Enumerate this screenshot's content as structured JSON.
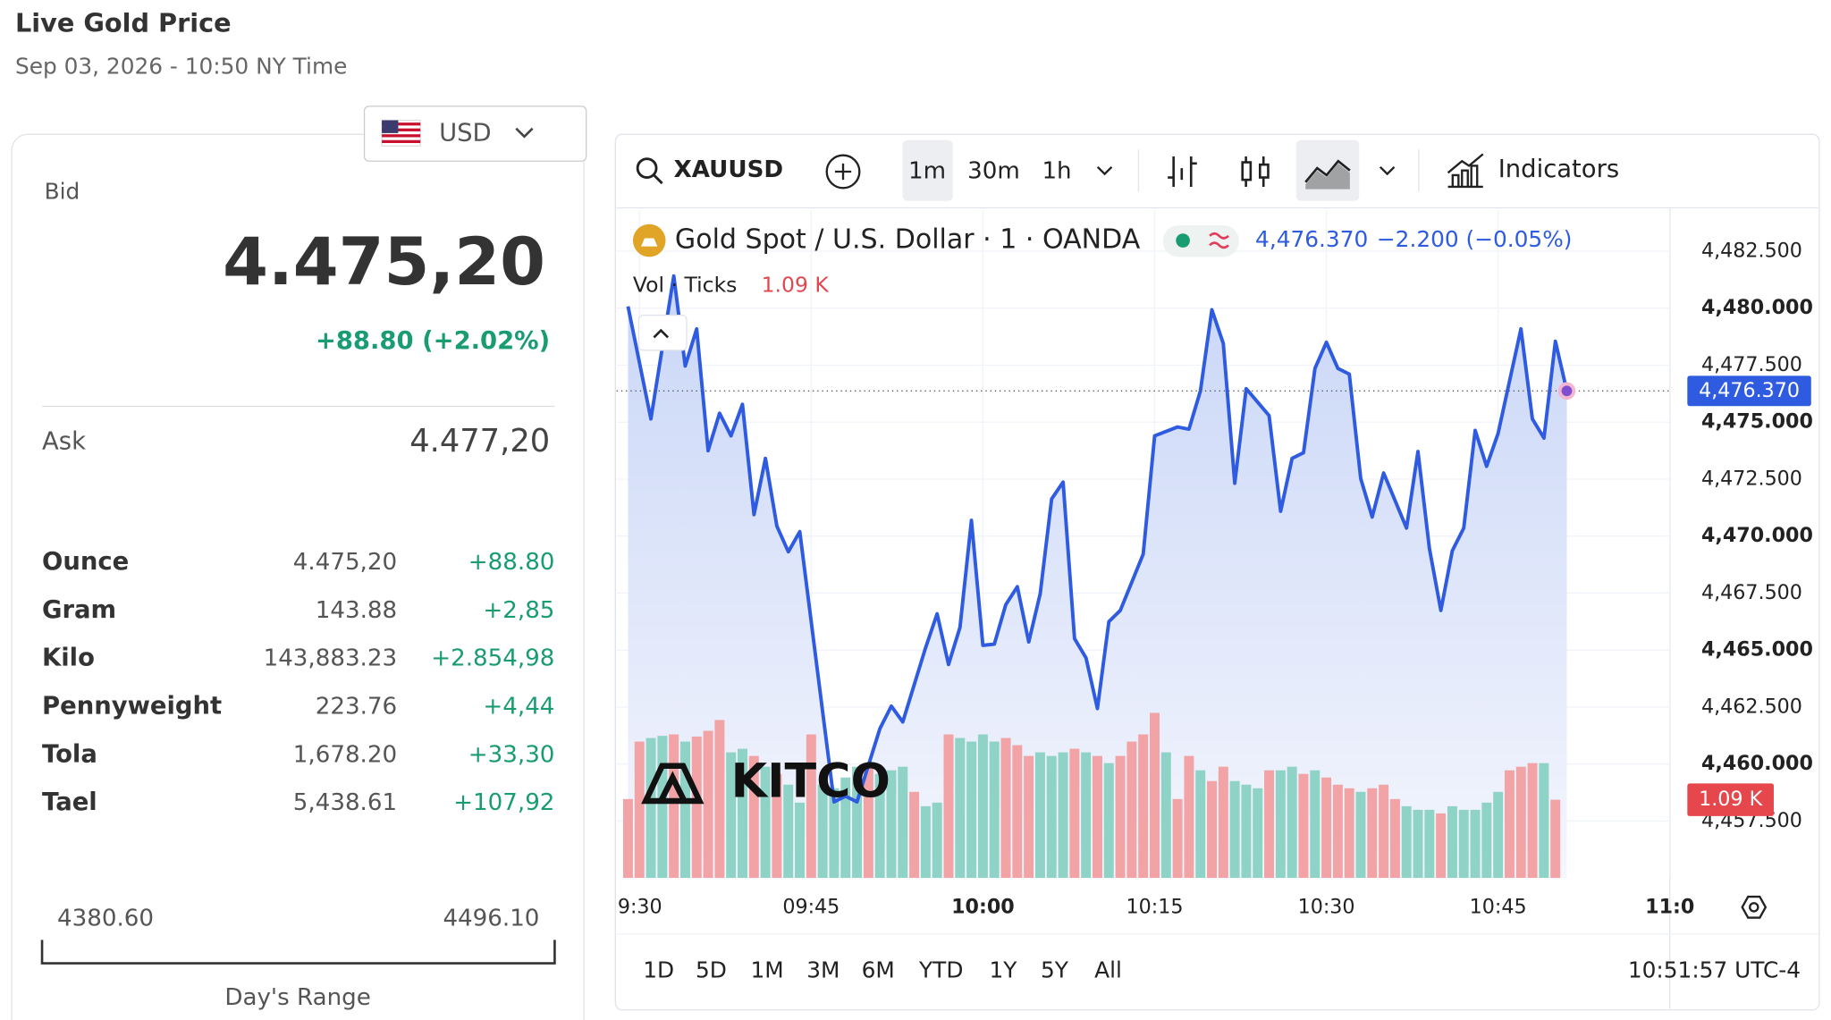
{
  "header": {
    "title": "Live Gold Price",
    "subtitle": "Sep 03, 2026 - 10:50 NY Time"
  },
  "quote": {
    "currency": "USD",
    "bid_label": "Bid",
    "bid": "4.475,20",
    "change": "+88.80 (+2.02%)",
    "ask_label": "Ask",
    "ask": "4.477,20"
  },
  "units": [
    {
      "name": "Ounce",
      "price": "4.475,20",
      "change": "+88.80"
    },
    {
      "name": "Gram",
      "price": "143.88",
      "change": "+2,85"
    },
    {
      "name": "Kilo",
      "price": "143,883.23",
      "change": "+2.854,98"
    },
    {
      "name": "Pennyweight",
      "price": "223.76",
      "change": "+4,44"
    },
    {
      "name": "Tola",
      "price": "1,678.20",
      "change": "+33,30"
    },
    {
      "name": "Tael",
      "price": "5,438.61",
      "change": "+107,92"
    }
  ],
  "day_range": {
    "low": "4380.60",
    "high": "4496.10",
    "label": "Day's Range"
  },
  "toolbar": {
    "symbol": "XAUUSD",
    "intervals": [
      "1m",
      "30m",
      "1h"
    ],
    "indicators": "Indicators"
  },
  "chart_data": {
    "type": "line",
    "title": "Gold Spot / U.S. Dollar · 1 · OANDA",
    "last_label": "4,476.370",
    "last_change": "−2.200 (−0.05%)",
    "color": "#2e5be0",
    "watermark": "KITCO",
    "x": [
      "09:29",
      "09:31",
      "09:33",
      "09:34",
      "09:35",
      "09:36",
      "09:37",
      "09:38",
      "09:39",
      "09:40",
      "09:41",
      "09:42",
      "09:43",
      "09:44",
      "09:46",
      "09:47",
      "09:48",
      "09:49",
      "09:51",
      "09:52",
      "09:53",
      "09:55",
      "09:56",
      "09:57",
      "09:58",
      "09:59",
      "10:00",
      "10:01",
      "10:02",
      "10:03",
      "10:04",
      "10:05",
      "10:06",
      "10:07",
      "10:08",
      "10:09",
      "10:10",
      "10:11",
      "10:12",
      "10:14",
      "10:15",
      "10:17",
      "10:18",
      "10:19",
      "10:20",
      "10:21",
      "10:22",
      "10:23",
      "10:25",
      "10:26",
      "10:27",
      "10:28",
      "10:29",
      "10:30",
      "10:31",
      "10:32",
      "10:33",
      "10:34",
      "10:35",
      "10:37",
      "10:38",
      "10:39",
      "10:40",
      "10:41",
      "10:42",
      "10:43",
      "10:44",
      "10:45",
      "10:47",
      "10:48",
      "10:49",
      "10:50",
      "10:51"
    ],
    "values": [
      4480.08,
      4475.14,
      4481.41,
      4477.46,
      4479.09,
      4473.75,
      4475.39,
      4474.4,
      4475.78,
      4470.94,
      4473.41,
      4470.44,
      4469.31,
      4470.2,
      4462.29,
      4458.34,
      4458.59,
      4458.34,
      4461.55,
      4462.54,
      4461.85,
      4465.11,
      4466.59,
      4464.37,
      4466.0,
      4470.69,
      4465.21,
      4465.26,
      4466.99,
      4467.78,
      4465.36,
      4467.48,
      4471.63,
      4472.37,
      4465.5,
      4464.66,
      4462.44,
      4466.25,
      4466.74,
      4469.21,
      4474.4,
      4474.79,
      4474.69,
      4476.37,
      4479.93,
      4478.45,
      4472.32,
      4476.47,
      4475.29,
      4471.09,
      4473.41,
      4473.66,
      4477.36,
      4478.5,
      4477.36,
      4477.11,
      4472.52,
      4470.84,
      4472.77,
      4470.35,
      4473.71,
      4469.46,
      4466.74,
      4469.36,
      4470.35,
      4474.64,
      4473.06,
      4474.5,
      4479.09,
      4475.14,
      4474.3,
      4478.55,
      4476.37
    ],
    "xlim": [
      "09:28",
      "11:00"
    ],
    "xticks": [
      {
        "value": "09:30",
        "label": "9:30"
      },
      "09:45",
      "10:00",
      "10:15",
      "10:30",
      "10:45",
      {
        "value": "11:00",
        "label": "11:0"
      }
    ],
    "ylim": [
      4455.0,
      4484.3
    ],
    "yticks": [
      {
        "value": 4457.5,
        "label": "4,457.500"
      },
      {
        "value": 4460,
        "label": "4,460.000"
      },
      {
        "value": 4462.5,
        "label": "4,462.500"
      },
      {
        "value": 4465,
        "label": "4,465.000"
      },
      {
        "value": 4467.5,
        "label": "4,467.500"
      },
      {
        "value": 4470,
        "label": "4,470.000"
      },
      {
        "value": 4472.5,
        "label": "4,472.500"
      },
      {
        "value": 4475,
        "label": "4,475.000"
      },
      {
        "value": 4477.5,
        "label": "4,477.500"
      },
      {
        "value": 4480,
        "label": "4,480.000"
      },
      {
        "value": 4482.5,
        "label": "4,482.500"
      }
    ],
    "grid": true,
    "volume": {
      "label": "Vol · Ticks",
      "last_label": "1.09 K",
      "up_color": "#8fd3c7",
      "down_color": "#f2a3a6",
      "vlim": [
        0,
        9.3
      ],
      "x": [
        "09:29",
        "09:30",
        "09:31",
        "09:32",
        "09:33",
        "09:34",
        "09:35",
        "09:36",
        "09:37",
        "09:38",
        "09:39",
        "09:40",
        "09:41",
        "09:42",
        "09:43",
        "09:44",
        "09:45",
        "09:46",
        "09:47",
        "09:48",
        "09:49",
        "09:50",
        "09:51",
        "09:52",
        "09:53",
        "09:54",
        "09:55",
        "09:56",
        "09:57",
        "09:58",
        "09:59",
        "10:00",
        "10:01",
        "10:02",
        "10:03",
        "10:04",
        "10:05",
        "10:06",
        "10:07",
        "10:08",
        "10:09",
        "10:10",
        "10:11",
        "10:12",
        "10:13",
        "10:14",
        "10:15",
        "10:16",
        "10:17",
        "10:18",
        "10:19",
        "10:20",
        "10:21",
        "10:22",
        "10:23",
        "10:24",
        "10:25",
        "10:26",
        "10:27",
        "10:28",
        "10:29",
        "10:30",
        "10:31",
        "10:32",
        "10:33",
        "10:34",
        "10:35",
        "10:36",
        "10:37",
        "10:38",
        "10:39",
        "10:40",
        "10:41",
        "10:42",
        "10:43",
        "10:44",
        "10:45",
        "10:46",
        "10:47",
        "10:48",
        "10:49",
        "10:50"
      ],
      "values": [
        1.1,
        1.9,
        1.95,
        1.98,
        2.0,
        1.9,
        1.97,
        2.05,
        2.2,
        1.75,
        1.8,
        1.7,
        1.55,
        1.45,
        1.3,
        1.05,
        2.0,
        1.3,
        1.25,
        1.4,
        1.55,
        1.6,
        1.45,
        1.5,
        1.55,
        1.2,
        1.0,
        1.05,
        2.0,
        1.95,
        1.9,
        2.0,
        1.9,
        1.95,
        1.85,
        1.7,
        1.75,
        1.7,
        1.75,
        1.8,
        1.75,
        1.7,
        1.6,
        1.7,
        1.9,
        2.0,
        2.3,
        1.75,
        1.1,
        1.7,
        1.5,
        1.35,
        1.55,
        1.35,
        1.3,
        1.25,
        1.5,
        1.5,
        1.55,
        1.45,
        1.5,
        1.4,
        1.3,
        1.25,
        1.2,
        1.25,
        1.3,
        1.1,
        1.0,
        0.95,
        0.95,
        0.9,
        1.0,
        0.95,
        0.95,
        1.05,
        1.2,
        1.5,
        1.55,
        1.6,
        1.6,
        1.09
      ],
      "up": [
        false,
        false,
        true,
        true,
        false,
        true,
        false,
        false,
        false,
        true,
        true,
        false,
        true,
        false,
        true,
        true,
        false,
        true,
        true,
        true,
        true,
        false,
        true,
        true,
        true,
        false,
        true,
        true,
        false,
        true,
        true,
        true,
        true,
        false,
        false,
        false,
        true,
        true,
        true,
        false,
        true,
        false,
        true,
        false,
        false,
        false,
        false,
        true,
        false,
        false,
        true,
        false,
        false,
        true,
        true,
        true,
        false,
        true,
        true,
        false,
        true,
        false,
        false,
        false,
        true,
        false,
        false,
        false,
        true,
        true,
        true,
        false,
        true,
        true,
        true,
        true,
        true,
        false,
        false,
        false,
        true,
        false
      ]
    }
  },
  "periods": [
    "1D",
    "5D",
    "1M",
    "3M",
    "6M",
    "YTD",
    "1Y",
    "5Y",
    "All"
  ],
  "clock": "10:51:57 UTC-4"
}
